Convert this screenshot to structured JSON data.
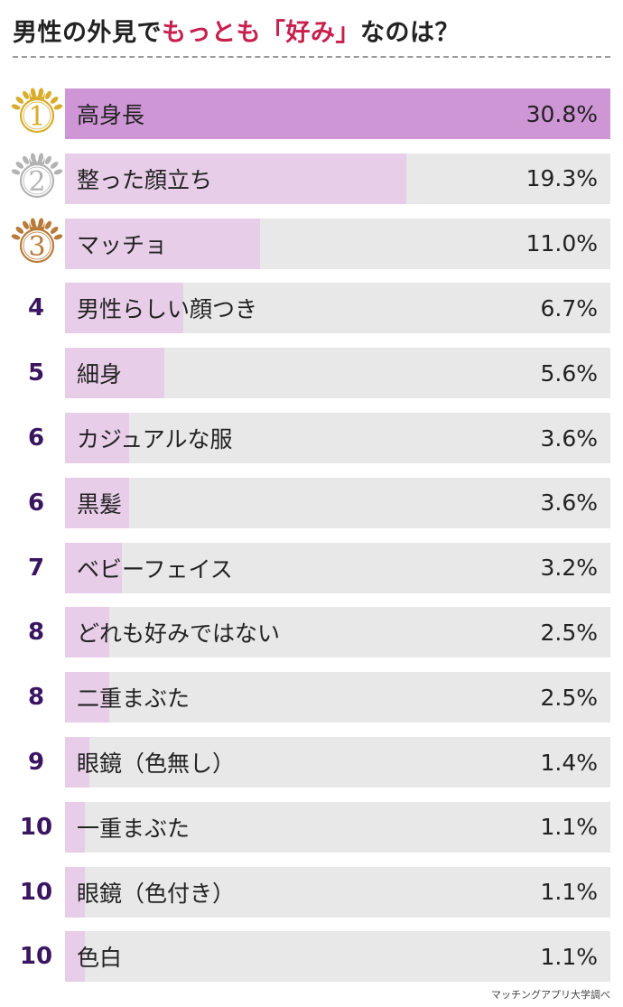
{
  "title": {
    "prefix": "男性の外見で",
    "highlight": "もっとも「好み」",
    "suffix": "なのは？"
  },
  "colors": {
    "accent": "#c8204e",
    "bar_top": "#cf96d6",
    "bar": "#e8cde9",
    "track": "#e8e8e8",
    "rank_text": "#3a1560",
    "gold": "#d8ad2c",
    "silver": "#b3b3b3",
    "bronze": "#b87b3a"
  },
  "chart_data": {
    "type": "bar",
    "orientation": "horizontal",
    "title": "男性の外見でもっとも「好み」なのは？",
    "categories": [
      "高身長",
      "整った顔立ち",
      "マッチョ",
      "男性らしい顔つき",
      "細身",
      "カジュアルな服",
      "黒髪",
      "ベビーフェイス",
      "どれも好みではない",
      "二重まぶた",
      "眼鏡（色無し）",
      "一重まぶた",
      "眼鏡（色付き）",
      "色白"
    ],
    "ranks": [
      "1",
      "2",
      "3",
      "4",
      "5",
      "6",
      "6",
      "7",
      "8",
      "8",
      "9",
      "10",
      "10",
      "10"
    ],
    "medals": [
      "gold-medal-icon",
      "silver-medal-icon",
      "bronze-medal-icon"
    ],
    "values": [
      30.8,
      19.3,
      11.0,
      6.7,
      5.6,
      3.6,
      3.6,
      3.2,
      2.5,
      2.5,
      1.4,
      1.1,
      1.1,
      1.1
    ],
    "value_labels": [
      "30.8%",
      "19.3%",
      "11.0%",
      "6.7%",
      "5.6%",
      "3.6%",
      "3.6%",
      "3.2%",
      "2.5%",
      "2.5%",
      "1.4%",
      "1.1%",
      "1.1%",
      "1.1%"
    ],
    "xlim": [
      0,
      30.8
    ],
    "grid": false,
    "legend": "none"
  },
  "source": "マッチングアプリ大学調べ"
}
